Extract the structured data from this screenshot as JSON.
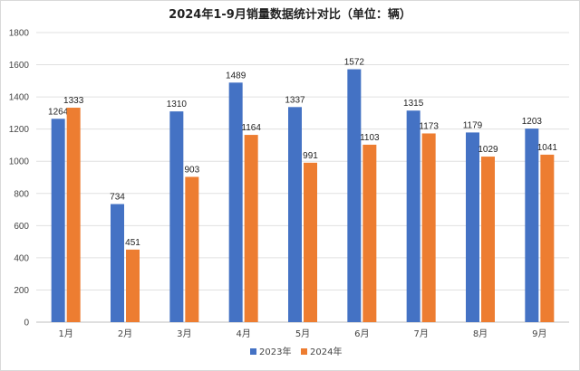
{
  "chart_data": {
    "type": "bar",
    "title": "2024年1-9月销量数据统计对比（单位：辆）",
    "categories": [
      "1月",
      "2月",
      "3月",
      "4月",
      "5月",
      "6月",
      "7月",
      "8月",
      "9月"
    ],
    "series": [
      {
        "name": "2023年",
        "color": "#4472C4",
        "values": [
          1264,
          734,
          1310,
          1489,
          1337,
          1572,
          1315,
          1179,
          1203
        ]
      },
      {
        "name": "2024年",
        "color": "#ED7D31",
        "values": [
          1333,
          451,
          903,
          1164,
          991,
          1103,
          1173,
          1029,
          1041
        ]
      }
    ],
    "ylim": [
      0,
      1800
    ],
    "yticks": [
      0,
      200,
      400,
      600,
      800,
      1000,
      1200,
      1400,
      1600,
      1800
    ],
    "grid": true,
    "legend_position": "bottom-center",
    "data_labels": true
  }
}
